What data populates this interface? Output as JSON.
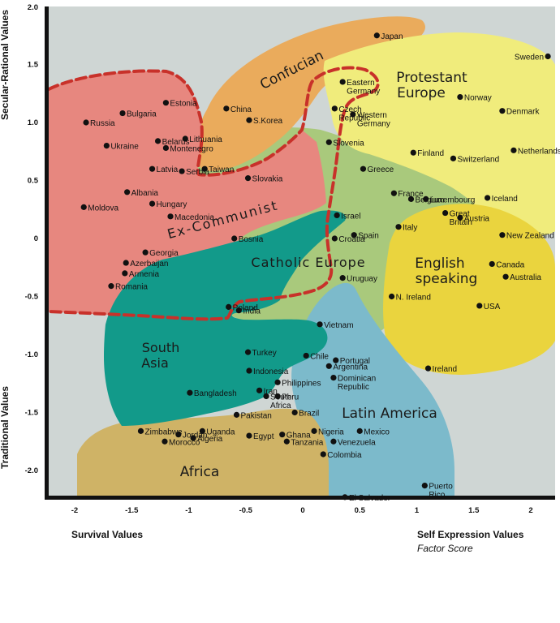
{
  "chart_data": {
    "type": "scatter",
    "xlabel_left": "Survival Values",
    "xlabel_right": "Self Expression Values",
    "xlabel_sub": "Factor Score",
    "ylabel_top": "Secular-Rational Values",
    "ylabel_bottom": "Traditional Values",
    "xlim": [
      -2.25,
      2.25
    ],
    "ylim": [
      -2.25,
      2.0
    ],
    "x_ticks": [
      "-2",
      "-1.5",
      "-1",
      "-0.5",
      "0",
      "0.5",
      "1",
      "1.5",
      "2"
    ],
    "y_ticks": [
      "2.0",
      "1.5",
      "1.0",
      "0.5",
      "0",
      "-0.5",
      "-1.0",
      "-1.5",
      "-2.0"
    ],
    "region_labels": {
      "confucian": "Confucian",
      "protestant_1": "Protestant",
      "protestant_2": "Europe",
      "ex_communist": "Ex-Communist",
      "catholic": "Catholic Europe",
      "english_1": "English",
      "english_2": "speaking",
      "south_asia_1": "South",
      "south_asia_2": "Asia",
      "latin_america": "Latin America",
      "africa": "Africa"
    },
    "colors": {
      "background": "#cfd6d4",
      "confucian": "#eaab5c",
      "protestant": "#f0ec7c",
      "ex_communist": "#e7877f",
      "catholic": "#a9c97c",
      "english": "#ead43e",
      "south_asia": "#129a8a",
      "latin_america": "#7cbacb",
      "africa": "#cfb366",
      "boundary": "#c8312a"
    },
    "points": [
      {
        "name": "Japan",
        "x": 0.65,
        "y": 1.75,
        "lines": [
          "Japan"
        ]
      },
      {
        "name": "Sweden",
        "x": 2.15,
        "y": 1.57,
        "lines": [
          "Sweden"
        ]
      },
      {
        "name": "Eastern Germany",
        "x": 0.35,
        "y": 1.35,
        "lines": [
          "Eastern",
          "Germany"
        ]
      },
      {
        "name": "Norway",
        "x": 1.38,
        "y": 1.22,
        "lines": [
          "Norway"
        ]
      },
      {
        "name": "Estonia",
        "x": -1.2,
        "y": 1.17,
        "lines": [
          "Estonia"
        ]
      },
      {
        "name": "Bulgaria",
        "x": -1.58,
        "y": 1.08,
        "lines": [
          "Bulgaria"
        ]
      },
      {
        "name": "Russia",
        "x": -1.9,
        "y": 1.0,
        "lines": [
          "Russia"
        ]
      },
      {
        "name": "China",
        "x": -0.67,
        "y": 1.12,
        "lines": [
          "China"
        ]
      },
      {
        "name": "Czech Republic",
        "x": 0.28,
        "y": 1.12,
        "lines": [
          "Czech",
          "Republic"
        ]
      },
      {
        "name": "Western Germany",
        "x": 0.44,
        "y": 1.07,
        "lines": [
          "Western",
          "Germany"
        ]
      },
      {
        "name": "Denmark",
        "x": 1.75,
        "y": 1.1,
        "lines": [
          "Denmark"
        ]
      },
      {
        "name": "S.Korea",
        "x": -0.47,
        "y": 1.02,
        "lines": [
          "S.Korea"
        ]
      },
      {
        "name": "Ukraine",
        "x": -1.72,
        "y": 0.8,
        "lines": [
          "Ukraine"
        ]
      },
      {
        "name": "Belarus",
        "x": -1.27,
        "y": 0.84,
        "lines": [
          "Belarus"
        ]
      },
      {
        "name": "Lithuania",
        "x": -1.03,
        "y": 0.86,
        "lines": [
          "Lithuania"
        ]
      },
      {
        "name": "Montenegro",
        "x": -1.2,
        "y": 0.78,
        "lines": [
          "Montenegro"
        ]
      },
      {
        "name": "Slovenia",
        "x": 0.23,
        "y": 0.83,
        "lines": [
          "Slovenia"
        ]
      },
      {
        "name": "Finland",
        "x": 0.97,
        "y": 0.74,
        "lines": [
          "Finland"
        ]
      },
      {
        "name": "Netherlands",
        "x": 1.85,
        "y": 0.76,
        "lines": [
          "Netherlands"
        ]
      },
      {
        "name": "Latvia",
        "x": -1.32,
        "y": 0.6,
        "lines": [
          "Latvia"
        ]
      },
      {
        "name": "Serbia",
        "x": -1.06,
        "y": 0.58,
        "lines": [
          "Serbia"
        ]
      },
      {
        "name": "Taiwan",
        "x": -0.86,
        "y": 0.6,
        "lines": [
          "Taiwan"
        ]
      },
      {
        "name": "Switzerland",
        "x": 1.32,
        "y": 0.69,
        "lines": [
          "Switzerland"
        ]
      },
      {
        "name": "Greece",
        "x": 0.53,
        "y": 0.6,
        "lines": [
          "Greece"
        ]
      },
      {
        "name": "Slovakia",
        "x": -0.48,
        "y": 0.52,
        "lines": [
          "Slovakia"
        ]
      },
      {
        "name": "Albania",
        "x": -1.54,
        "y": 0.4,
        "lines": [
          "Albania"
        ]
      },
      {
        "name": "France",
        "x": 0.8,
        "y": 0.39,
        "lines": [
          "France"
        ]
      },
      {
        "name": "Luxembourg",
        "x": 1.08,
        "y": 0.34,
        "lines": [
          "Luxembourg"
        ]
      },
      {
        "name": "Iceland",
        "x": 1.62,
        "y": 0.35,
        "lines": [
          "Iceland"
        ]
      },
      {
        "name": "Belgium",
        "x": 0.95,
        "y": 0.34,
        "lines": [
          "Belgium"
        ]
      },
      {
        "name": "Hungary",
        "x": -1.32,
        "y": 0.3,
        "lines": [
          "Hungary"
        ]
      },
      {
        "name": "Moldova",
        "x": -1.92,
        "y": 0.27,
        "lines": [
          "Moldova"
        ]
      },
      {
        "name": "Israel",
        "x": 0.3,
        "y": 0.2,
        "lines": [
          "Israel"
        ]
      },
      {
        "name": "Austria",
        "x": 1.38,
        "y": 0.18,
        "lines": [
          "Austria"
        ]
      },
      {
        "name": "Great Britain",
        "x": 1.25,
        "y": 0.22,
        "lines": [
          "Great",
          "Britain"
        ]
      },
      {
        "name": "Macedonia",
        "x": -1.16,
        "y": 0.19,
        "lines": [
          "Macedonia"
        ]
      },
      {
        "name": "Italy",
        "x": 0.84,
        "y": 0.1,
        "lines": [
          "Italy"
        ]
      },
      {
        "name": "Bosnia",
        "x": -0.6,
        "y": 0.0,
        "lines": [
          "Bosnia"
        ]
      },
      {
        "name": "Croatia",
        "x": 0.28,
        "y": 0.0,
        "lines": [
          "Croatia"
        ]
      },
      {
        "name": "Spain",
        "x": 0.45,
        "y": 0.03,
        "lines": [
          "Spain"
        ]
      },
      {
        "name": "New Zealand",
        "x": 1.75,
        "y": 0.03,
        "lines": [
          "New Zealand"
        ]
      },
      {
        "name": "Georgia",
        "x": -1.38,
        "y": -0.12,
        "lines": [
          "Georgia"
        ]
      },
      {
        "name": "Azerbaijan",
        "x": -1.55,
        "y": -0.21,
        "lines": [
          "Azerbaijan"
        ]
      },
      {
        "name": "Armenia",
        "x": -1.56,
        "y": -0.3,
        "lines": [
          "Armenia"
        ]
      },
      {
        "name": "Canada",
        "x": 1.66,
        "y": -0.22,
        "lines": [
          "Canada"
        ]
      },
      {
        "name": "Uruguay",
        "x": 0.35,
        "y": -0.34,
        "lines": [
          "Uruguay"
        ]
      },
      {
        "name": "Australia",
        "x": 1.78,
        "y": -0.33,
        "lines": [
          "Australia"
        ]
      },
      {
        "name": "Romania",
        "x": -1.68,
        "y": -0.41,
        "lines": [
          "Romania"
        ]
      },
      {
        "name": "Poland",
        "x": -0.65,
        "y": -0.59,
        "lines": [
          "Poland"
        ]
      },
      {
        "name": "India",
        "x": -0.56,
        "y": -0.62,
        "lines": [
          "India"
        ]
      },
      {
        "name": "N. Ireland",
        "x": 0.78,
        "y": -0.5,
        "lines": [
          "N. Ireland"
        ]
      },
      {
        "name": "USA",
        "x": 1.55,
        "y": -0.58,
        "lines": [
          "USA"
        ]
      },
      {
        "name": "Vietnam",
        "x": 0.15,
        "y": -0.74,
        "lines": [
          "Vietnam"
        ]
      },
      {
        "name": "Turkey",
        "x": -0.48,
        "y": -0.98,
        "lines": [
          "Turkey"
        ]
      },
      {
        "name": "Portugal",
        "x": 0.29,
        "y": -1.05,
        "lines": [
          "Portugal"
        ]
      },
      {
        "name": "Chile",
        "x": 0.03,
        "y": -1.01,
        "lines": [
          "Chile"
        ]
      },
      {
        "name": "Indonesia",
        "x": -0.47,
        "y": -1.14,
        "lines": [
          "Indonesia"
        ]
      },
      {
        "name": "Argentina",
        "x": 0.23,
        "y": -1.1,
        "lines": [
          "Argentina"
        ]
      },
      {
        "name": "Ireland",
        "x": 1.1,
        "y": -1.12,
        "lines": [
          "Ireland"
        ]
      },
      {
        "name": "Philippines",
        "x": -0.22,
        "y": -1.24,
        "lines": [
          "Philippines"
        ]
      },
      {
        "name": "Dominican Republic",
        "x": 0.27,
        "y": -1.2,
        "lines": [
          "Dominican",
          "Republic"
        ]
      },
      {
        "name": "Iran",
        "x": -0.38,
        "y": -1.31,
        "lines": [
          "Iran"
        ]
      },
      {
        "name": "Bangladesh",
        "x": -0.99,
        "y": -1.33,
        "lines": [
          "Bangladesh"
        ]
      },
      {
        "name": "Peru",
        "x": -0.22,
        "y": -1.36,
        "lines": [
          "Peru"
        ]
      },
      {
        "name": "South Africa",
        "x": -0.32,
        "y": -1.36,
        "lines": [
          "South",
          "Africa"
        ]
      },
      {
        "name": "Pakistan",
        "x": -0.58,
        "y": -1.52,
        "lines": [
          "Pakistan"
        ]
      },
      {
        "name": "Brazil",
        "x": -0.07,
        "y": -1.5,
        "lines": [
          "Brazil"
        ]
      },
      {
        "name": "Jordan",
        "x": -1.09,
        "y": -1.69,
        "lines": [
          "Jordan"
        ]
      },
      {
        "name": "Uganda",
        "x": -0.88,
        "y": -1.66,
        "lines": [
          "Uganda"
        ]
      },
      {
        "name": "Ghana",
        "x": -0.18,
        "y": -1.69,
        "lines": [
          "Ghana"
        ]
      },
      {
        "name": "Nigeria",
        "x": 0.1,
        "y": -1.66,
        "lines": [
          "Nigeria"
        ]
      },
      {
        "name": "Mexico",
        "x": 0.5,
        "y": -1.66,
        "lines": [
          "Mexico"
        ]
      },
      {
        "name": "Zimbabwe",
        "x": -1.42,
        "y": -1.66,
        "lines": [
          "Zimbabwe"
        ]
      },
      {
        "name": "Algeria",
        "x": -0.96,
        "y": -1.72,
        "lines": [
          "Algeria"
        ]
      },
      {
        "name": "Egypt",
        "x": -0.47,
        "y": -1.7,
        "lines": [
          "Egypt"
        ]
      },
      {
        "name": "Morocco",
        "x": -1.21,
        "y": -1.75,
        "lines": [
          "Morocco"
        ]
      },
      {
        "name": "Tanzania",
        "x": -0.14,
        "y": -1.75,
        "lines": [
          "Tanzania"
        ]
      },
      {
        "name": "Venezuela",
        "x": 0.27,
        "y": -1.75,
        "lines": [
          "Venezuela"
        ]
      },
      {
        "name": "Colombia",
        "x": 0.18,
        "y": -1.86,
        "lines": [
          "Colombia"
        ]
      },
      {
        "name": "Puerto Rico",
        "x": 1.07,
        "y": -2.13,
        "lines": [
          "Puerto",
          "Rico"
        ]
      },
      {
        "name": "El Salvador",
        "x": 0.37,
        "y": -2.23,
        "lines": [
          "El Salvador"
        ]
      }
    ]
  }
}
